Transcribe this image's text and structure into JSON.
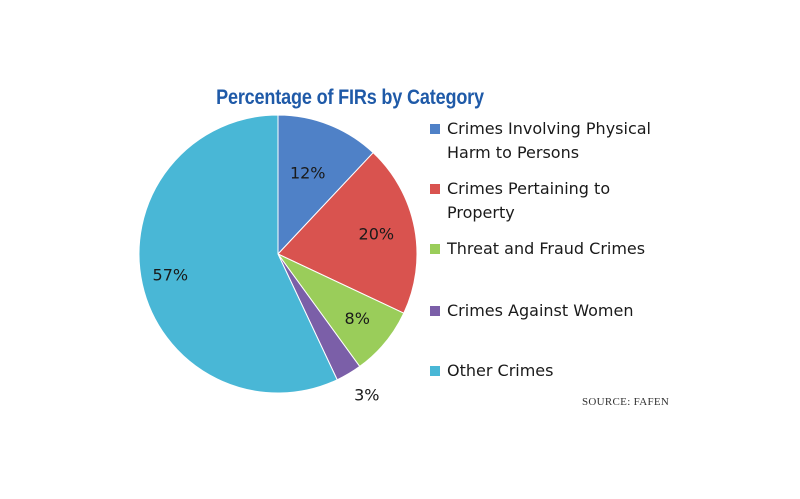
{
  "chart_data": {
    "type": "pie",
    "title": "Percentage of FIRs by Category",
    "slices": [
      {
        "label": "Crimes Involving Physical Harm to Persons",
        "value": 12,
        "display": "12%",
        "color": "#4f81c7"
      },
      {
        "label": "Crimes Pertaining to Property",
        "value": 20,
        "display": "20%",
        "color": "#d9534f"
      },
      {
        "label": "Threat and Fraud Crimes",
        "value": 8,
        "display": "8%",
        "color": "#9acd5a"
      },
      {
        "label": "Crimes Against Women",
        "value": 3,
        "display": "3%",
        "color": "#7b5fa8"
      },
      {
        "label": "Other Crimes",
        "value": 57,
        "display": "57%",
        "color": "#49b7d6"
      }
    ],
    "legend_position": "right",
    "source": "SOURCE: FAFEN"
  }
}
